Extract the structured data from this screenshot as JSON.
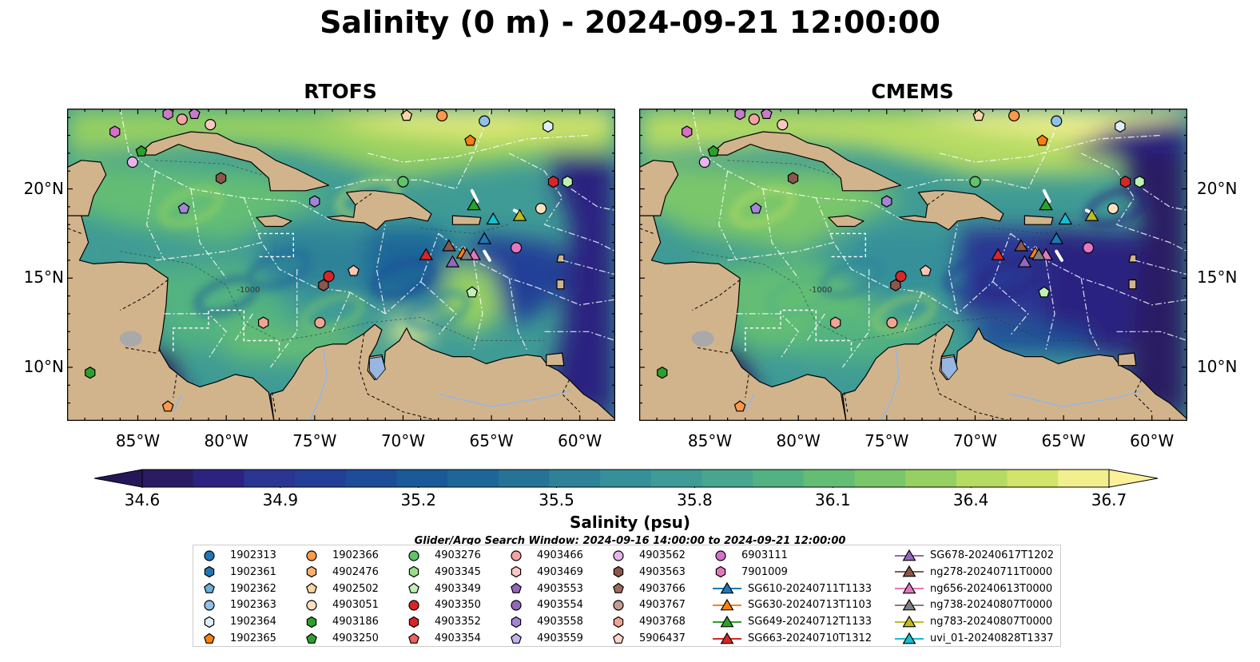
{
  "title": "Salinity (0 m) - 2024-09-21 12:00:00",
  "panels": [
    {
      "title": "RTOFS",
      "variant": "rtofs"
    },
    {
      "title": "CMEMS",
      "variant": "cmems"
    }
  ],
  "map": {
    "lon_range": [
      -89,
      -58
    ],
    "lat_range": [
      7,
      24.5
    ],
    "x_ticks": [
      "85°W",
      "80°W",
      "75°W",
      "70°W",
      "65°W",
      "60°W"
    ],
    "x_tick_values": [
      -85,
      -80,
      -75,
      -70,
      -65,
      -60
    ],
    "y_ticks": [
      "20°N",
      "15°N",
      "10°N"
    ],
    "y_tick_values": [
      20,
      15,
      10
    ],
    "land_color": "#d2b48c",
    "contour_labels": [
      "-1000"
    ]
  },
  "colorbar": {
    "label": "Salinity (psu)",
    "ticks": [
      "34.6",
      "34.9",
      "35.2",
      "35.5",
      "35.8",
      "36.1",
      "36.4",
      "36.7"
    ],
    "colors": [
      "#2b1b63",
      "#2c2380",
      "#2a3692",
      "#233f97",
      "#1d4c98",
      "#1b5a99",
      "#1d6698",
      "#257498",
      "#2d8298",
      "#36909a",
      "#3f9b95",
      "#47a68d",
      "#52b281",
      "#64bd75",
      "#7ac66b",
      "#96d062",
      "#b5db63",
      "#d2e46a",
      "#f2f08e"
    ],
    "extend_low": "#261659",
    "extend_high": "#fdf09a"
  },
  "search_window": "Glider/Argo Search Window: 2024-09-16 14:00:00 to 2024-09-21 12:00:00",
  "markers": [
    {
      "lon": -83.3,
      "lat": 24.2,
      "shape": "hexagon",
      "color": "#c77cc7"
    },
    {
      "lon": -82.5,
      "lat": 23.9,
      "shape": "circle",
      "color": "#f4a3a3"
    },
    {
      "lon": -81.8,
      "lat": 24.2,
      "shape": "pentagon",
      "color": "#c77cc7"
    },
    {
      "lon": -80.9,
      "lat": 23.6,
      "shape": "circle",
      "color": "#f7c8c0"
    },
    {
      "lon": -86.3,
      "lat": 23.2,
      "shape": "hexagon",
      "color": "#d76fc7"
    },
    {
      "lon": -84.8,
      "lat": 22.1,
      "shape": "pentagon",
      "color": "#2ca02c"
    },
    {
      "lon": -85.3,
      "lat": 21.5,
      "shape": "circle",
      "color": "#e7b5ec"
    },
    {
      "lon": -80.3,
      "lat": 20.6,
      "shape": "hexagon",
      "color": "#8c564b"
    },
    {
      "lon": -82.4,
      "lat": 18.9,
      "shape": "pentagon",
      "color": "#a285d8"
    },
    {
      "lon": -75.0,
      "lat": 19.3,
      "shape": "hexagon",
      "color": "#a285d8"
    },
    {
      "lon": -70.0,
      "lat": 20.4,
      "shape": "circle",
      "color": "#5fc46a"
    },
    {
      "lon": -69.8,
      "lat": 24.1,
      "shape": "pentagon",
      "color": "#fcd5a5"
    },
    {
      "lon": -67.8,
      "lat": 24.1,
      "shape": "circle",
      "color": "#fd9a4a"
    },
    {
      "lon": -65.4,
      "lat": 23.8,
      "shape": "circle",
      "color": "#8fc0ea"
    },
    {
      "lon": -66.2,
      "lat": 22.7,
      "shape": "pentagon",
      "color": "#ff7f0e"
    },
    {
      "lon": -61.8,
      "lat": 23.5,
      "shape": "hexagon",
      "color": "#deeefa"
    },
    {
      "lon": -61.5,
      "lat": 20.4,
      "shape": "hexagon",
      "color": "#d62728"
    },
    {
      "lon": -60.7,
      "lat": 20.4,
      "shape": "hexagon",
      "color": "#bff0b4"
    },
    {
      "lon": -62.2,
      "lat": 18.9,
      "shape": "circle",
      "color": "#fde0c0"
    },
    {
      "lon": -63.6,
      "lat": 16.7,
      "shape": "circle",
      "color": "#e377c2"
    },
    {
      "lon": -74.2,
      "lat": 15.1,
      "shape": "circle",
      "color": "#d62728"
    },
    {
      "lon": -74.5,
      "lat": 14.6,
      "shape": "hexagon",
      "color": "#8c564b"
    },
    {
      "lon": -72.8,
      "lat": 15.4,
      "shape": "pentagon",
      "color": "#fcc7b0"
    },
    {
      "lon": -77.9,
      "lat": 12.5,
      "shape": "hexagon",
      "color": "#f0a592"
    },
    {
      "lon": -74.7,
      "lat": 12.5,
      "shape": "circle",
      "color": "#f0a592"
    },
    {
      "lon": -66.1,
      "lat": 14.2,
      "shape": "pentagon",
      "color": "#bff0b4"
    },
    {
      "lon": -87.7,
      "lat": 9.7,
      "shape": "hexagon",
      "color": "#2ca02c"
    },
    {
      "lon": -83.3,
      "lat": 7.8,
      "shape": "pentagon",
      "color": "#fd9a4a"
    },
    {
      "lon": -66.0,
      "lat": 19.1,
      "shape": "triangle",
      "color": "#2ca02c"
    },
    {
      "lon": -64.9,
      "lat": 18.3,
      "shape": "triangle",
      "color": "#17becf"
    },
    {
      "lon": -63.4,
      "lat": 18.5,
      "shape": "triangle",
      "color": "#bcbd22"
    },
    {
      "lon": -65.4,
      "lat": 17.2,
      "shape": "triangle",
      "color": "#1f77b4"
    },
    {
      "lon": -67.4,
      "lat": 16.8,
      "shape": "triangle",
      "color": "#8c564b"
    },
    {
      "lon": -66.6,
      "lat": 16.4,
      "shape": "triangle",
      "color": "#ff7f0e"
    },
    {
      "lon": -66.0,
      "lat": 16.3,
      "shape": "triangle",
      "color": "#e377c2"
    },
    {
      "lon": -66.4,
      "lat": 16.3,
      "shape": "triangle",
      "color": "#7f7f7f"
    },
    {
      "lon": -67.2,
      "lat": 15.9,
      "shape": "triangle",
      "color": "#9467bd"
    },
    {
      "lon": -68.7,
      "lat": 16.3,
      "shape": "triangle",
      "color": "#d62728"
    }
  ],
  "legend": {
    "columns": [
      [
        {
          "label": "1902313",
          "shape": "circle",
          "color": "#1f77b4"
        },
        {
          "label": "1902361",
          "shape": "hexagon",
          "color": "#1f77b4"
        },
        {
          "label": "1902362",
          "shape": "pentagon",
          "color": "#6baed6"
        },
        {
          "label": "1902363",
          "shape": "circle",
          "color": "#8fc0ea"
        },
        {
          "label": "1902364",
          "shape": "hexagon",
          "color": "#deeefa"
        },
        {
          "label": "1902365",
          "shape": "pentagon",
          "color": "#ff7f0e"
        }
      ],
      [
        {
          "label": "1902366",
          "shape": "circle",
          "color": "#fd9a4a"
        },
        {
          "label": "4902476",
          "shape": "hexagon",
          "color": "#fdae6b"
        },
        {
          "label": "4902502",
          "shape": "pentagon",
          "color": "#fcd5a5"
        },
        {
          "label": "4903051",
          "shape": "circle",
          "color": "#fde0c0"
        },
        {
          "label": "4903186",
          "shape": "hexagon",
          "color": "#2ca02c"
        },
        {
          "label": "4903250",
          "shape": "pentagon",
          "color": "#2ca02c"
        }
      ],
      [
        {
          "label": "4903276",
          "shape": "circle",
          "color": "#5fc46a"
        },
        {
          "label": "4903345",
          "shape": "hexagon",
          "color": "#98df8a"
        },
        {
          "label": "4903349",
          "shape": "pentagon",
          "color": "#bff0b4"
        },
        {
          "label": "4903350",
          "shape": "circle",
          "color": "#d62728"
        },
        {
          "label": "4903352",
          "shape": "hexagon",
          "color": "#d62728"
        },
        {
          "label": "4903354",
          "shape": "pentagon",
          "color": "#f06060"
        }
      ],
      [
        {
          "label": "4903466",
          "shape": "circle",
          "color": "#f4a3a3"
        },
        {
          "label": "4903469",
          "shape": "hexagon",
          "color": "#fcc7c7"
        },
        {
          "label": "4903553",
          "shape": "pentagon",
          "color": "#9467bd"
        },
        {
          "label": "4903554",
          "shape": "circle",
          "color": "#9467bd"
        },
        {
          "label": "4903558",
          "shape": "hexagon",
          "color": "#a285d8"
        },
        {
          "label": "4903559",
          "shape": "pentagon",
          "color": "#c5b0ea"
        }
      ],
      [
        {
          "label": "4903562",
          "shape": "circle",
          "color": "#e7b5ec"
        },
        {
          "label": "4903563",
          "shape": "hexagon",
          "color": "#8c564b"
        },
        {
          "label": "4903766",
          "shape": "pentagon",
          "color": "#9c6b5e"
        },
        {
          "label": "4903767",
          "shape": "circle",
          "color": "#c49c94"
        },
        {
          "label": "4903768",
          "shape": "hexagon",
          "color": "#f0a592"
        },
        {
          "label": "5906437",
          "shape": "pentagon",
          "color": "#fcd5c8"
        }
      ],
      [
        {
          "label": "6903111",
          "shape": "circle",
          "color": "#d76fc7"
        },
        {
          "label": "7901009",
          "shape": "hexagon",
          "color": "#e377c2"
        },
        {
          "label": "SG610-20240711T1133",
          "shape": "triangle-line",
          "color": "#1f77b4"
        },
        {
          "label": "SG630-20240713T1103",
          "shape": "triangle-line",
          "color": "#ff7f0e"
        },
        {
          "label": "SG649-20240712T1133",
          "shape": "triangle-line",
          "color": "#2ca02c"
        },
        {
          "label": "SG663-20240710T1312",
          "shape": "triangle-line",
          "color": "#d62728"
        }
      ],
      [
        {
          "label": "SG678-20240617T1202",
          "shape": "triangle-line",
          "color": "#9467bd"
        },
        {
          "label": "ng278-20240711T0000",
          "shape": "triangle-line",
          "color": "#8c564b"
        },
        {
          "label": "ng656-20240613T0000",
          "shape": "triangle-line",
          "color": "#e377c2"
        },
        {
          "label": "ng738-20240807T0000",
          "shape": "triangle-line",
          "color": "#7f7f7f"
        },
        {
          "label": "ng783-20240807T0000",
          "shape": "triangle-line",
          "color": "#bcbd22"
        },
        {
          "label": "uvi_01-20240828T1337",
          "shape": "triangle-line",
          "color": "#17becf"
        }
      ]
    ]
  }
}
